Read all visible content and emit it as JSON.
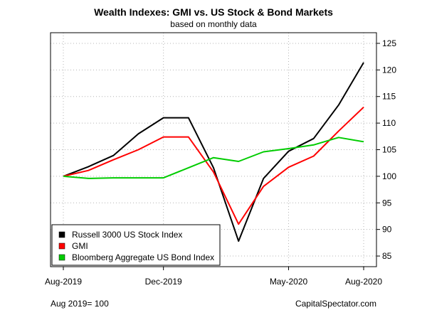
{
  "header": {
    "title": "Wealth Indexes: GMI vs. US Stock & Bond Markets",
    "subtitle": "based on monthly data"
  },
  "footer": {
    "base_note": "Aug 2019= 100",
    "source": "CapitalSpectator.com"
  },
  "chart_data": {
    "type": "line",
    "title": "Wealth Indexes: GMI vs. US Stock & Bond Markets",
    "subtitle": "based on monthly data",
    "x": [
      "Aug-2019",
      "Sep-2019",
      "Oct-2019",
      "Nov-2019",
      "Dec-2019",
      "Jan-2020",
      "Feb-2020",
      "Mar-2020",
      "Apr-2020",
      "May-2020",
      "Jun-2020",
      "Jul-2020",
      "Aug-2020"
    ],
    "x_tick_labels": [
      "Aug-2019",
      "Dec-2019",
      "May-2020",
      "Aug-2020"
    ],
    "y_ticks": [
      85,
      90,
      95,
      100,
      105,
      110,
      115,
      120,
      125
    ],
    "ylim": [
      83,
      127
    ],
    "y_axis_side": "right",
    "grid": true,
    "legend_position": "bottom-left",
    "series": [
      {
        "name": "Russell 3000 US Stock Index",
        "color": "#000000",
        "values": [
          100,
          101.8,
          103.9,
          108.0,
          111.0,
          111.0,
          101.6,
          87.8,
          99.6,
          104.7,
          107.1,
          113.4,
          121.4
        ]
      },
      {
        "name": "GMI",
        "color": "#ff0000",
        "values": [
          100,
          101.1,
          103.1,
          105.0,
          107.4,
          107.4,
          100.8,
          91.0,
          98.1,
          101.7,
          103.8,
          108.5,
          113.0
        ]
      },
      {
        "name": "Bloomberg Aggregate US Bond Index",
        "color": "#00cc00",
        "values": [
          100,
          99.6,
          99.7,
          99.7,
          99.7,
          101.6,
          103.5,
          102.8,
          104.6,
          105.2,
          105.9,
          107.3,
          106.5
        ]
      }
    ]
  }
}
